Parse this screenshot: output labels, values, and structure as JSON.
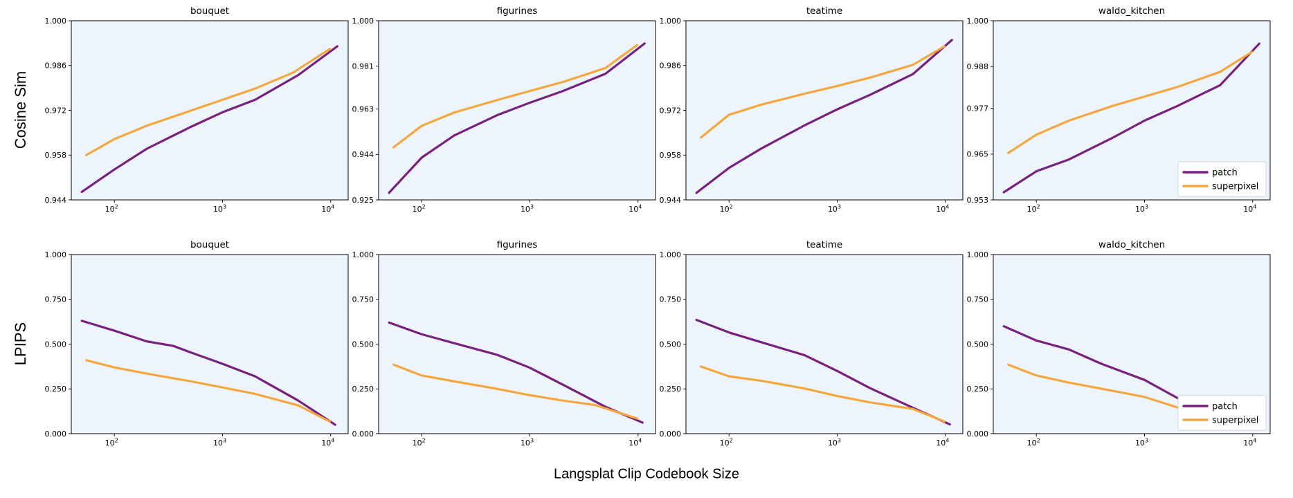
{
  "figure": {
    "xlabel": "Langsplat Clip Codebook Size",
    "row_labels": [
      "Cosine Sim",
      "LPIPS"
    ],
    "colors": {
      "patch": "#76217e",
      "superpixel": "#f3a73d",
      "plot_background": "#eef4fc",
      "spine": "#000000",
      "legend_border": "#d5d5d5"
    },
    "legend_labels": [
      "patch",
      "superpixel"
    ]
  },
  "chart_data": [
    {
      "type": "line",
      "title": "bouquet",
      "metric": "Cosine Sim",
      "row": 0,
      "col": 0,
      "xscale": "log",
      "xlim": [
        40,
        14500
      ],
      "xtick_exponents": [
        2,
        3,
        4
      ],
      "ylim": [
        0.944,
        1.0
      ],
      "yticks": [
        {
          "v": 0.944,
          "label": "0.944"
        },
        {
          "v": 0.958,
          "label": "0.958"
        },
        {
          "v": 0.972,
          "label": "0.972"
        },
        {
          "v": 0.986,
          "label": "0.986"
        },
        {
          "v": 1.0,
          "label": "1.000"
        }
      ],
      "legend": false,
      "grid": false,
      "series": [
        {
          "name": "patch",
          "color": "#76217e",
          "points": [
            [
              50,
              0.9465
            ],
            [
              100,
              0.9535
            ],
            [
              200,
              0.96
            ],
            [
              500,
              0.9667
            ],
            [
              1000,
              0.9714
            ],
            [
              2000,
              0.9753
            ],
            [
              5000,
              0.983
            ],
            [
              11500,
              0.992
            ]
          ]
        },
        {
          "name": "superpixel",
          "color": "#f3a73d",
          "points": [
            [
              55,
              0.958
            ],
            [
              100,
              0.963
            ],
            [
              200,
              0.9672
            ],
            [
              500,
              0.9718
            ],
            [
              1000,
              0.9753
            ],
            [
              2000,
              0.9788
            ],
            [
              4500,
              0.9838
            ],
            [
              9800,
              0.9912
            ]
          ]
        }
      ]
    },
    {
      "type": "line",
      "title": "figurines",
      "metric": "Cosine Sim",
      "row": 0,
      "col": 1,
      "xscale": "log",
      "xlim": [
        40,
        14500
      ],
      "xtick_exponents": [
        2,
        3,
        4
      ],
      "ylim": [
        0.925,
        1.0
      ],
      "yticks": [
        {
          "v": 0.925,
          "label": "0.925"
        },
        {
          "v": 0.944,
          "label": "0.944"
        },
        {
          "v": 0.963,
          "label": "0.963"
        },
        {
          "v": 0.981,
          "label": "0.981"
        },
        {
          "v": 1.0,
          "label": "1.000"
        }
      ],
      "legend": false,
      "grid": false,
      "series": [
        {
          "name": "patch",
          "color": "#76217e",
          "points": [
            [
              50,
              0.928
            ],
            [
              100,
              0.9427
            ],
            [
              200,
              0.952
            ],
            [
              500,
              0.9605
            ],
            [
              1000,
              0.9657
            ],
            [
              2000,
              0.9705
            ],
            [
              5000,
              0.9778
            ],
            [
              11500,
              0.9905
            ]
          ]
        },
        {
          "name": "superpixel",
          "color": "#f3a73d",
          "points": [
            [
              55,
              0.947
            ],
            [
              100,
              0.956
            ],
            [
              200,
              0.9616
            ],
            [
              500,
              0.9668
            ],
            [
              1000,
              0.9706
            ],
            [
              2000,
              0.9743
            ],
            [
              5000,
              0.9802
            ],
            [
              9800,
              0.9898
            ]
          ]
        }
      ]
    },
    {
      "type": "line",
      "title": "teatime",
      "metric": "Cosine Sim",
      "row": 0,
      "col": 2,
      "xscale": "log",
      "xlim": [
        40,
        14500
      ],
      "xtick_exponents": [
        2,
        3,
        4
      ],
      "ylim": [
        0.944,
        1.0
      ],
      "yticks": [
        {
          "v": 0.944,
          "label": "0.944"
        },
        {
          "v": 0.958,
          "label": "0.958"
        },
        {
          "v": 0.972,
          "label": "0.972"
        },
        {
          "v": 0.986,
          "label": "0.986"
        },
        {
          "v": 1.0,
          "label": "1.000"
        }
      ],
      "legend": false,
      "grid": false,
      "series": [
        {
          "name": "patch",
          "color": "#76217e",
          "points": [
            [
              50,
              0.9462
            ],
            [
              100,
              0.954
            ],
            [
              200,
              0.9601
            ],
            [
              500,
              0.9673
            ],
            [
              1000,
              0.9723
            ],
            [
              2000,
              0.9768
            ],
            [
              5000,
              0.9833
            ],
            [
              11500,
              0.994
            ]
          ]
        },
        {
          "name": "superpixel",
          "color": "#f3a73d",
          "points": [
            [
              55,
              0.9635
            ],
            [
              100,
              0.9706
            ],
            [
              200,
              0.9738
            ],
            [
              500,
              0.9772
            ],
            [
              1000,
              0.9796
            ],
            [
              2000,
              0.9822
            ],
            [
              5000,
              0.9862
            ],
            [
              9800,
              0.992
            ]
          ]
        }
      ]
    },
    {
      "type": "line",
      "title": "waldo_kitchen",
      "metric": "Cosine Sim",
      "row": 0,
      "col": 3,
      "xscale": "log",
      "xlim": [
        40,
        14500
      ],
      "xtick_exponents": [
        2,
        3,
        4
      ],
      "ylim": [
        0.953,
        1.0
      ],
      "yticks": [
        {
          "v": 0.953,
          "label": "0.953"
        },
        {
          "v": 0.965,
          "label": "0.965"
        },
        {
          "v": 0.977,
          "label": "0.977"
        },
        {
          "v": 0.988,
          "label": "0.988"
        },
        {
          "v": 1.0,
          "label": "1.000"
        }
      ],
      "legend": true,
      "legend_loc": "lower right",
      "grid": false,
      "series": [
        {
          "name": "patch",
          "color": "#76217e",
          "points": [
            [
              50,
              0.955
            ],
            [
              100,
              0.9605
            ],
            [
              200,
              0.9636
            ],
            [
              500,
              0.9692
            ],
            [
              1000,
              0.9738
            ],
            [
              2000,
              0.9776
            ],
            [
              5000,
              0.9831
            ],
            [
              11500,
              0.994
            ]
          ]
        },
        {
          "name": "superpixel",
          "color": "#f3a73d",
          "points": [
            [
              55,
              0.9653
            ],
            [
              100,
              0.9701
            ],
            [
              200,
              0.9738
            ],
            [
              500,
              0.9776
            ],
            [
              1000,
              0.9801
            ],
            [
              2000,
              0.9826
            ],
            [
              5000,
              0.9866
            ],
            [
              9800,
              0.9918
            ]
          ]
        }
      ]
    },
    {
      "type": "line",
      "title": "bouquet",
      "metric": "LPIPS",
      "row": 1,
      "col": 0,
      "xscale": "log",
      "xlim": [
        40,
        14500
      ],
      "xtick_exponents": [
        2,
        3,
        4
      ],
      "ylim": [
        0.0,
        1.0
      ],
      "yticks": [
        {
          "v": 0.0,
          "label": "0.000"
        },
        {
          "v": 0.25,
          "label": "0.250"
        },
        {
          "v": 0.5,
          "label": "0.500"
        },
        {
          "v": 0.75,
          "label": "0.750"
        },
        {
          "v": 1.0,
          "label": "1.000"
        }
      ],
      "legend": false,
      "grid": false,
      "series": [
        {
          "name": "patch",
          "color": "#76217e",
          "points": [
            [
              50,
              0.63
            ],
            [
              100,
              0.575
            ],
            [
              200,
              0.515
            ],
            [
              350,
              0.49
            ],
            [
              500,
              0.455
            ],
            [
              1000,
              0.39
            ],
            [
              2000,
              0.32
            ],
            [
              5000,
              0.185
            ],
            [
              11000,
              0.05
            ]
          ]
        },
        {
          "name": "superpixel",
          "color": "#f3a73d",
          "points": [
            [
              55,
              0.41
            ],
            [
              100,
              0.37
            ],
            [
              200,
              0.335
            ],
            [
              500,
              0.293
            ],
            [
              1000,
              0.258
            ],
            [
              2000,
              0.222
            ],
            [
              5000,
              0.158
            ],
            [
              9800,
              0.068
            ]
          ]
        }
      ]
    },
    {
      "type": "line",
      "title": "figurines",
      "metric": "LPIPS",
      "row": 1,
      "col": 1,
      "xscale": "log",
      "xlim": [
        40,
        14500
      ],
      "xtick_exponents": [
        2,
        3,
        4
      ],
      "ylim": [
        0.0,
        1.0
      ],
      "yticks": [
        {
          "v": 0.0,
          "label": "0.000"
        },
        {
          "v": 0.25,
          "label": "0.250"
        },
        {
          "v": 0.5,
          "label": "0.500"
        },
        {
          "v": 0.75,
          "label": "0.750"
        },
        {
          "v": 1.0,
          "label": "1.000"
        }
      ],
      "legend": false,
      "grid": false,
      "series": [
        {
          "name": "patch",
          "color": "#76217e",
          "points": [
            [
              50,
              0.62
            ],
            [
              100,
              0.555
            ],
            [
              200,
              0.505
            ],
            [
              500,
              0.44
            ],
            [
              1000,
              0.368
            ],
            [
              2000,
              0.275
            ],
            [
              5000,
              0.15
            ],
            [
              11000,
              0.062
            ]
          ]
        },
        {
          "name": "superpixel",
          "color": "#f3a73d",
          "points": [
            [
              55,
              0.385
            ],
            [
              100,
              0.325
            ],
            [
              200,
              0.292
            ],
            [
              500,
              0.25
            ],
            [
              1000,
              0.215
            ],
            [
              2000,
              0.185
            ],
            [
              4000,
              0.16
            ],
            [
              9800,
              0.085
            ]
          ]
        }
      ]
    },
    {
      "type": "line",
      "title": "teatime",
      "metric": "LPIPS",
      "row": 1,
      "col": 2,
      "xscale": "log",
      "xlim": [
        40,
        14500
      ],
      "xtick_exponents": [
        2,
        3,
        4
      ],
      "ylim": [
        0.0,
        1.0
      ],
      "yticks": [
        {
          "v": 0.0,
          "label": "0.000"
        },
        {
          "v": 0.25,
          "label": "0.250"
        },
        {
          "v": 0.5,
          "label": "0.500"
        },
        {
          "v": 0.75,
          "label": "0.750"
        },
        {
          "v": 1.0,
          "label": "1.000"
        }
      ],
      "legend": false,
      "grid": false,
      "series": [
        {
          "name": "patch",
          "color": "#76217e",
          "points": [
            [
              50,
              0.635
            ],
            [
              100,
              0.565
            ],
            [
              200,
              0.51
            ],
            [
              500,
              0.438
            ],
            [
              1000,
              0.35
            ],
            [
              2000,
              0.255
            ],
            [
              5000,
              0.145
            ],
            [
              11000,
              0.052
            ]
          ]
        },
        {
          "name": "superpixel",
          "color": "#f3a73d",
          "points": [
            [
              55,
              0.375
            ],
            [
              100,
              0.32
            ],
            [
              200,
              0.295
            ],
            [
              500,
              0.252
            ],
            [
              1000,
              0.21
            ],
            [
              2000,
              0.175
            ],
            [
              5000,
              0.138
            ],
            [
              9800,
              0.068
            ]
          ]
        }
      ]
    },
    {
      "type": "line",
      "title": "waldo_kitchen",
      "metric": "LPIPS",
      "row": 1,
      "col": 3,
      "xscale": "log",
      "xlim": [
        40,
        14500
      ],
      "xtick_exponents": [
        2,
        3,
        4
      ],
      "ylim": [
        0.0,
        1.0
      ],
      "yticks": [
        {
          "v": 0.0,
          "label": "0.000"
        },
        {
          "v": 0.25,
          "label": "0.250"
        },
        {
          "v": 0.5,
          "label": "0.500"
        },
        {
          "v": 0.75,
          "label": "0.750"
        },
        {
          "v": 1.0,
          "label": "1.000"
        }
      ],
      "legend": true,
      "legend_loc": "lower right",
      "grid": false,
      "series": [
        {
          "name": "patch",
          "color": "#76217e",
          "points": [
            [
              50,
              0.6
            ],
            [
              100,
              0.52
            ],
            [
              200,
              0.47
            ],
            [
              400,
              0.39
            ],
            [
              1000,
              0.3
            ],
            [
              2300,
              0.18
            ],
            [
              5000,
              0.105
            ],
            [
              11000,
              0.048
            ]
          ]
        },
        {
          "name": "superpixel",
          "color": "#f3a73d",
          "points": [
            [
              55,
              0.385
            ],
            [
              100,
              0.325
            ],
            [
              200,
              0.285
            ],
            [
              500,
              0.24
            ],
            [
              1000,
              0.205
            ],
            [
              2300,
              0.135
            ],
            [
              5000,
              0.1
            ],
            [
              9800,
              0.06
            ]
          ]
        }
      ]
    }
  ]
}
